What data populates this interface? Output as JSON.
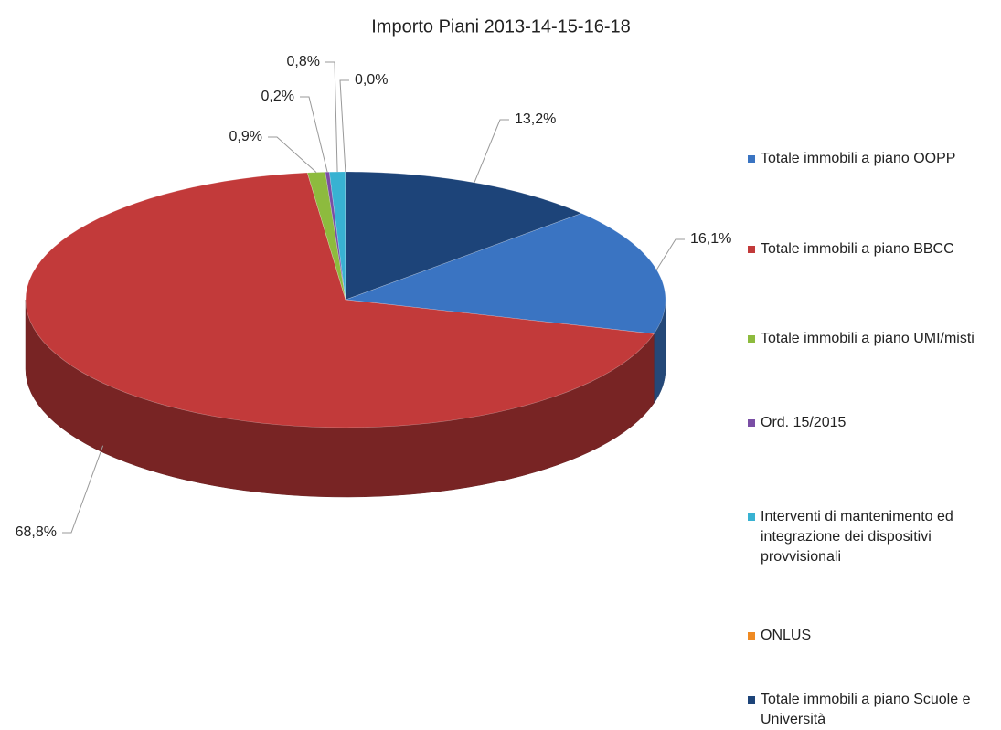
{
  "chart_data": {
    "type": "pie",
    "title": "Importo Piani 2013-14-15-16-18",
    "categories": [
      "Totale immobili a piano OOPP",
      "Totale immobili a piano BBCC",
      "Totale immobili a piano UMI/misti",
      "Ord. 15/2015",
      "Interventi di mantenimento ed integrazione dei dispositivi provvisionali",
      "ONLUS",
      "Totale immobili a piano Scuole e Università"
    ],
    "values": [
      16.1,
      68.8,
      0.9,
      0.2,
      0.8,
      0.0,
      13.2
    ],
    "value_labels": [
      "16,1%",
      "68,8%",
      "0,9%",
      "0,2%",
      "0,8%",
      "0,0%",
      "13,2%"
    ],
    "colors": [
      "#3a74c2",
      "#c23a3a",
      "#8dbb3e",
      "#7a4ea5",
      "#38b2d2",
      "#ef8a22",
      "#1d4479"
    ],
    "legend": "right"
  }
}
